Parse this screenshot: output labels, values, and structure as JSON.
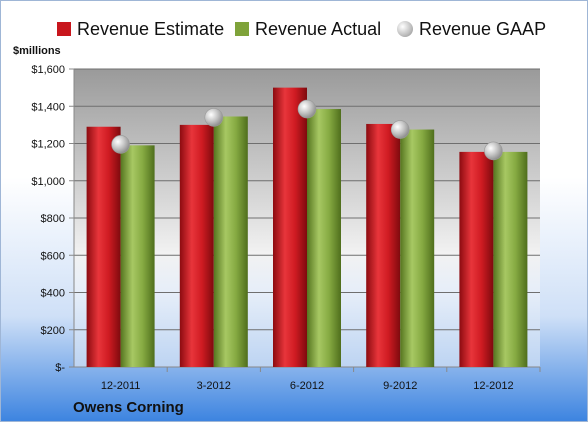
{
  "chart_data": {
    "type": "bar",
    "categories": [
      "12-2011",
      "3-2012",
      "6-2012",
      "9-2012",
      "12-2012"
    ],
    "series": [
      {
        "name": "Revenue Estimate",
        "type": "bar",
        "color": "#c8161d",
        "values": [
          1290,
          1300,
          1500,
          1305,
          1155
        ]
      },
      {
        "name": "Revenue Actual",
        "type": "bar",
        "color": "#7fa33a",
        "values": [
          1190,
          1345,
          1385,
          1275,
          1155
        ]
      },
      {
        "name": "Revenue GAAP",
        "type": "marker",
        "color": "#c8c8c8",
        "values": [
          1195,
          1340,
          1385,
          1275,
          1160
        ]
      }
    ],
    "ylabel": "$millions",
    "ylim": [
      0,
      1600
    ],
    "yticks": [
      0,
      200,
      400,
      600,
      800,
      1000,
      1200,
      1400,
      1600
    ],
    "ytick_labels": [
      "$-",
      "$200",
      "$400",
      "$600",
      "$800",
      "$1,000",
      "$1,200",
      "$1,400",
      "$1,600"
    ],
    "grid": true,
    "legend_position": "top"
  },
  "company": "Owens Corning"
}
